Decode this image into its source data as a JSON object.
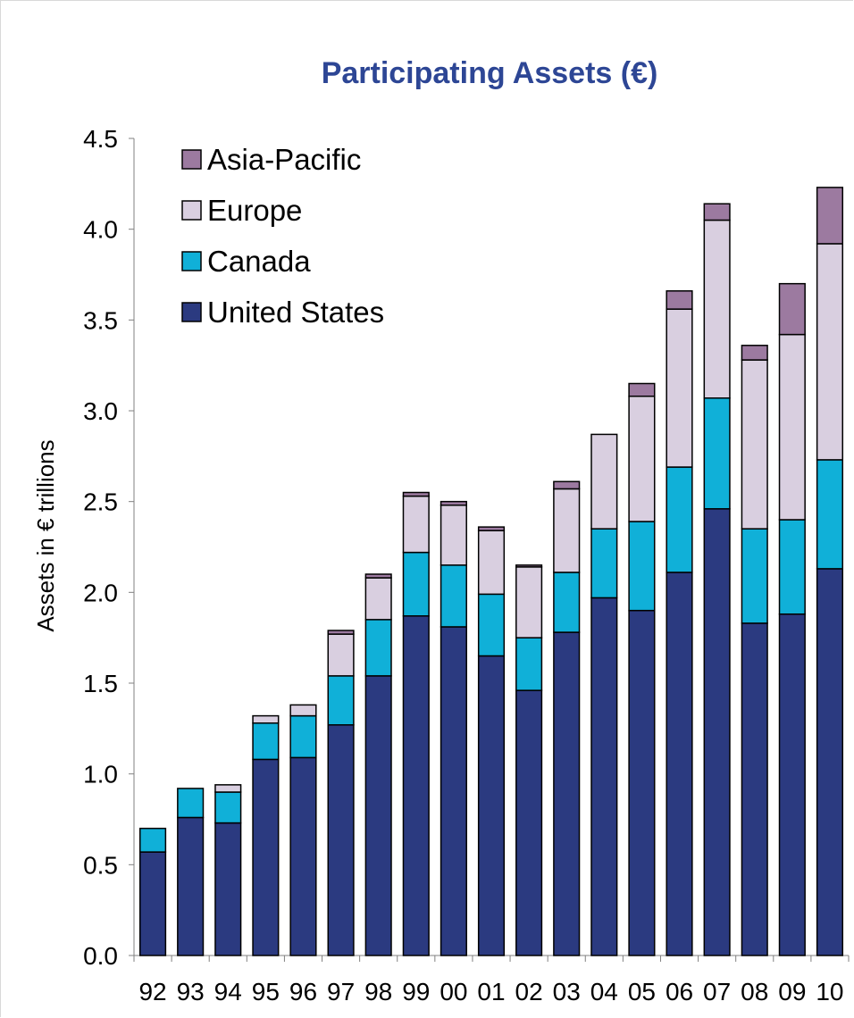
{
  "chart_data": {
    "type": "bar",
    "stacked": true,
    "title": "Participating Assets (€)",
    "xlabel": "",
    "ylabel": "Assets in € trillions",
    "ylim": [
      0,
      4.5
    ],
    "yticks": [
      "0.0",
      "0.5",
      "1.0",
      "1.5",
      "2.0",
      "2.5",
      "3.0",
      "3.5",
      "4.0",
      "4.5"
    ],
    "grid": false,
    "legend_position": "top-left",
    "categories": [
      "92",
      "93",
      "94",
      "95",
      "96",
      "97",
      "98",
      "99",
      "00",
      "01",
      "02",
      "03",
      "04",
      "05",
      "06",
      "07",
      "08",
      "09",
      "10"
    ],
    "series": [
      {
        "name": "United States",
        "color": "#2b3a80",
        "values": [
          0.57,
          0.76,
          0.73,
          1.08,
          1.09,
          1.27,
          1.54,
          1.87,
          1.81,
          1.65,
          1.46,
          1.78,
          1.97,
          1.9,
          2.11,
          2.46,
          1.83,
          1.88,
          2.13
        ]
      },
      {
        "name": "Canada",
        "color": "#10b0d8",
        "values": [
          0.13,
          0.16,
          0.17,
          0.2,
          0.23,
          0.27,
          0.31,
          0.35,
          0.34,
          0.34,
          0.29,
          0.33,
          0.38,
          0.49,
          0.58,
          0.61,
          0.52,
          0.52,
          0.6
        ]
      },
      {
        "name": "Europe",
        "color": "#d9cfe0",
        "values": [
          0,
          0,
          0.04,
          0.04,
          0.06,
          0.23,
          0.23,
          0.31,
          0.33,
          0.35,
          0.39,
          0.46,
          0.52,
          0.69,
          0.87,
          0.98,
          0.93,
          1.02,
          1.19
        ]
      },
      {
        "name": "Asia-Pacific",
        "color": "#9c7aa0",
        "values": [
          0,
          0,
          0,
          0,
          0,
          0.02,
          0.02,
          0.02,
          0.02,
          0.02,
          0.01,
          0.04,
          0,
          0.07,
          0.1,
          0.09,
          0.08,
          0.28,
          0.31
        ]
      }
    ],
    "legend_order": [
      "Asia-Pacific",
      "Europe",
      "Canada",
      "United States"
    ],
    "title_color": "#2d4695"
  }
}
